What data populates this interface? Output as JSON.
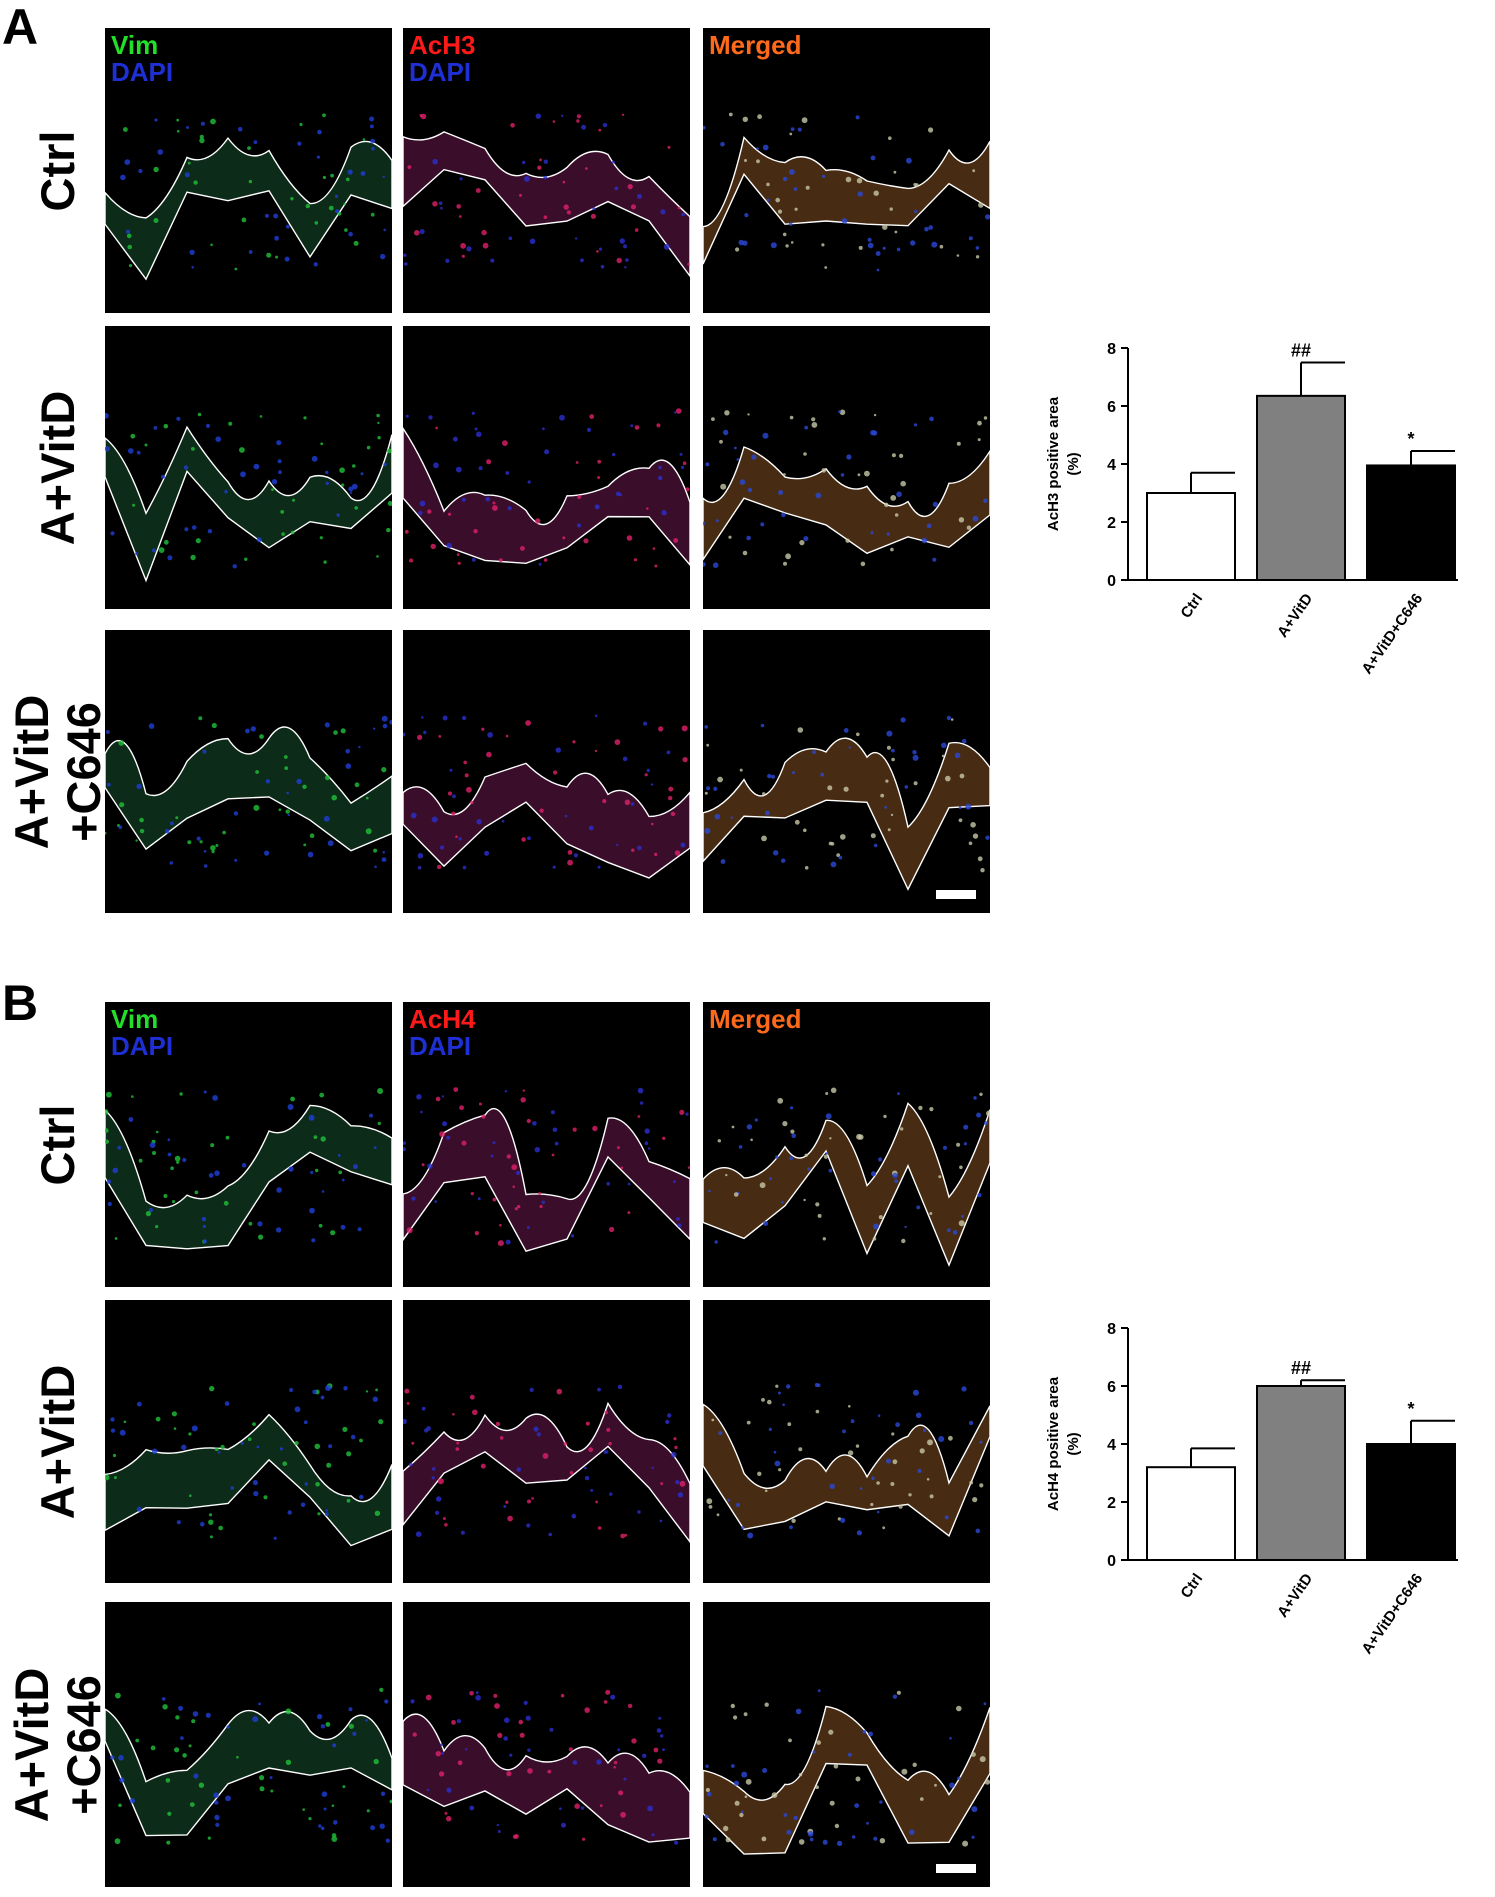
{
  "panels": [
    {
      "letter": "A",
      "rows": [
        "Ctrl",
        "A+VitD",
        "A+VitD\n+C646"
      ],
      "columns": [
        {
          "lines": [
            {
              "text": "Vim",
              "color": "#22e02a"
            },
            {
              "text": "DAPI",
              "color": "#1f2fd6"
            }
          ]
        },
        {
          "lines": [
            {
              "text": "AcH3",
              "color": "#ff1a1a"
            },
            {
              "text": "DAPI",
              "color": "#1f2fd6"
            }
          ]
        },
        {
          "lines": [
            {
              "text": "Merged",
              "color": "#ff6a1a"
            }
          ]
        }
      ]
    },
    {
      "letter": "B",
      "rows": [
        "Ctrl",
        "A+VitD",
        "A+VitD\n+C646"
      ],
      "columns": [
        {
          "lines": [
            {
              "text": "Vim",
              "color": "#22e02a"
            },
            {
              "text": "DAPI",
              "color": "#1f2fd6"
            }
          ]
        },
        {
          "lines": [
            {
              "text": "AcH4",
              "color": "#ff1a1a"
            },
            {
              "text": "DAPI",
              "color": "#1f2fd6"
            }
          ]
        },
        {
          "lines": [
            {
              "text": "Merged",
              "color": "#ff6a1a"
            }
          ]
        }
      ]
    }
  ],
  "chart_data": [
    {
      "type": "bar",
      "categories": [
        "Ctrl",
        "A+VitD",
        "A+VitD+C646"
      ],
      "values": [
        3.0,
        6.35,
        3.95
      ],
      "errors": [
        0.7,
        1.15,
        0.5
      ],
      "annotations": [
        "",
        "##",
        "*"
      ],
      "bar_colors": [
        "#ffffff",
        "#808080",
        "#000000"
      ],
      "ylabel": "AcH3 positive area\n(%)",
      "ylim": [
        0,
        8
      ],
      "yticks": [
        0,
        2,
        4,
        6,
        8
      ]
    },
    {
      "type": "bar",
      "categories": [
        "Ctrl",
        "A+VitD",
        "A+VitD+C646"
      ],
      "values": [
        3.2,
        6.0,
        4.0
      ],
      "errors": [
        0.65,
        0.2,
        0.8
      ],
      "annotations": [
        "",
        "##",
        "*"
      ],
      "bar_colors": [
        "#ffffff",
        "#808080",
        "#000000"
      ],
      "ylabel": "AcH4 positive area\n(%)",
      "ylim": [
        0,
        8
      ],
      "yticks": [
        0,
        2,
        4,
        6,
        8
      ]
    }
  ]
}
